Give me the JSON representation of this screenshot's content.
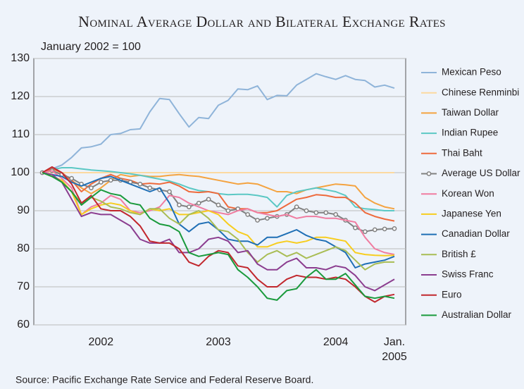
{
  "chart_data": {
    "type": "line",
    "title": "Nominal Average Dollar and Bilateral Exchange Rates",
    "subtitle": "January 2002 = 100",
    "source": "Source: Pacific Exchange Rate Service and Federal Reserve Board.",
    "categories": [
      null,
      null,
      null,
      null,
      null,
      null,
      "2002",
      null,
      null,
      null,
      null,
      null,
      null,
      null,
      null,
      null,
      null,
      null,
      "2003",
      null,
      null,
      null,
      null,
      null,
      null,
      null,
      null,
      null,
      null,
      null,
      "2004",
      null,
      null,
      null,
      null,
      null,
      "Jan. 2005"
    ],
    "ylim": [
      60,
      130
    ],
    "yticks": [
      60,
      70,
      80,
      90,
      100,
      110,
      120,
      130
    ],
    "grid": true,
    "legend": "right",
    "series": [
      {
        "name": "Mexican Peso",
        "color": "#8fb4d9",
        "values": [
          100,
          101,
          102,
          104,
          106.5,
          106.8,
          107.5,
          110,
          110.3,
          111.3,
          111.5,
          116,
          119.5,
          119.2,
          115.5,
          112,
          114.5,
          114.2,
          117.7,
          119,
          122,
          121.8,
          122.8,
          119.2,
          120.3,
          120.2,
          123,
          124.5,
          126,
          125.2,
          124.5,
          125.5,
          124.5,
          124.2,
          122.5,
          123,
          122.2
        ]
      },
      {
        "name": "Chinese Renminbi",
        "color": "#fcd9a0",
        "values": [
          100,
          100,
          100,
          100,
          100,
          100,
          100,
          100,
          100,
          100,
          100,
          100,
          100,
          100,
          100,
          100,
          100,
          100,
          100,
          100,
          100,
          100,
          100,
          100,
          100,
          100,
          100,
          100,
          100,
          100,
          100,
          100,
          100,
          100,
          100,
          100,
          100
        ]
      },
      {
        "name": "Taiwan Dollar",
        "color": "#f4a340",
        "values": [
          100,
          100.5,
          99.5,
          98,
          96,
          94.5,
          96,
          98,
          99.5,
          99,
          99.3,
          99,
          99,
          99.3,
          99.5,
          99.2,
          99,
          98.5,
          98,
          97.5,
          97,
          97.3,
          97,
          96,
          95,
          95,
          94.5,
          95.5,
          96,
          96.5,
          97,
          96.8,
          96.5,
          93.5,
          92,
          91,
          90.5
        ]
      },
      {
        "name": "Indian Rupee",
        "color": "#5bc8c4",
        "values": [
          100,
          100.8,
          101.3,
          101.3,
          101,
          100.7,
          100.5,
          100.3,
          100,
          99.7,
          99.3,
          98.8,
          98.3,
          97.8,
          97,
          96,
          95.3,
          95,
          94.5,
          94.2,
          94.3,
          94.3,
          94,
          93.5,
          91,
          94,
          95,
          95.5,
          96,
          95.5,
          95,
          94,
          91,
          90.5,
          90.3,
          90,
          90
        ]
      },
      {
        "name": "Thai Baht",
        "color": "#ee6a3c",
        "values": [
          100,
          101,
          100,
          98,
          95,
          97,
          98.5,
          99.5,
          98.5,
          98,
          97,
          97.2,
          97,
          97.5,
          96.5,
          95,
          94.8,
          95,
          94.5,
          91,
          90.5,
          90.5,
          89.5,
          89.5,
          90,
          91.5,
          93,
          93.5,
          94.2,
          94,
          93.5,
          93.5,
          92,
          89.5,
          88.5,
          87.8,
          87.3
        ]
      },
      {
        "name": "Average US Dollar",
        "color": "#808080",
        "marker": "circle",
        "values": [
          100,
          100.5,
          99.5,
          98.5,
          97,
          96,
          97.5,
          98,
          98,
          97.5,
          97,
          96,
          95.5,
          95,
          91.5,
          91,
          92,
          93,
          91.5,
          90,
          90.5,
          89,
          87.5,
          88,
          88.5,
          89,
          91,
          90,
          89.5,
          89.5,
          89,
          87.5,
          85.5,
          84.5,
          85,
          85.2,
          85.3
        ]
      },
      {
        "name": "Korean Won",
        "color": "#f07ca0",
        "values": [
          100,
          100.5,
          98.5,
          96,
          89,
          91,
          92,
          94,
          93,
          90,
          89.5,
          90,
          91,
          94,
          93.5,
          92,
          91,
          90,
          89.5,
          89,
          90,
          90.5,
          89.5,
          89,
          88.5,
          89,
          88,
          88.5,
          88.5,
          88,
          88,
          87.5,
          87,
          83,
          80,
          79,
          78.5
        ]
      },
      {
        "name": "Japanese Yen",
        "color": "#f7cd1f",
        "values": [
          100,
          99,
          98,
          95,
          89,
          90.5,
          91.5,
          92,
          91.5,
          90,
          89,
          90.5,
          90,
          90.5,
          89,
          89,
          89.5,
          90,
          89,
          86.5,
          84.5,
          83.5,
          80.5,
          80.5,
          81.5,
          82,
          81.5,
          82,
          83,
          83,
          82.5,
          82,
          79,
          78.5,
          78.3,
          78.2,
          78.3
        ]
      },
      {
        "name": "Canadian Dollar",
        "color": "#1f6fb5",
        "values": [
          100,
          99.5,
          99,
          97.5,
          96.5,
          97.5,
          98.5,
          99,
          98,
          97,
          96,
          95,
          96,
          92,
          86.5,
          84.5,
          86.5,
          87,
          85,
          82.5,
          82,
          82,
          81,
          83,
          83,
          84,
          85,
          83.5,
          82.5,
          82,
          80.5,
          79,
          75,
          76,
          76.5,
          77,
          78
        ]
      },
      {
        "name": "British £",
        "color": "#a9bd54",
        "values": [
          100,
          99,
          97.5,
          95,
          92,
          93.5,
          92.5,
          91,
          90.5,
          89.5,
          89,
          90.5,
          90.5,
          88,
          86.5,
          89,
          90,
          88,
          85,
          84.5,
          82.5,
          79,
          76.5,
          78.5,
          79.5,
          78,
          79,
          77.5,
          78.5,
          79.5,
          80.5,
          79.5,
          77,
          74.5,
          76,
          76.5,
          76.5
        ]
      },
      {
        "name": "Swiss Franc",
        "color": "#8b3d8f",
        "values": [
          100,
          99.5,
          97.5,
          93,
          88.5,
          89.5,
          89,
          89,
          87.5,
          86,
          82.5,
          81.5,
          81.5,
          82.5,
          79,
          79,
          80,
          82.5,
          83,
          82,
          79,
          79.5,
          76,
          74.5,
          74.5,
          76.5,
          77.5,
          75,
          75,
          74.5,
          75.5,
          75,
          73,
          70,
          69,
          70.5,
          72
        ]
      },
      {
        "name": "Euro",
        "color": "#c1272d",
        "values": [
          100,
          101.5,
          100,
          97,
          92,
          94,
          90.5,
          90,
          90,
          88.5,
          86,
          82,
          81.5,
          81.5,
          80,
          76.5,
          75.5,
          78,
          79.5,
          79,
          75.5,
          75,
          72,
          70,
          70,
          72,
          73,
          72.5,
          72.5,
          72,
          72.5,
          72,
          70,
          67.5,
          66,
          67.5,
          68
        ]
      },
      {
        "name": "Australian Dollar",
        "color": "#1a9a3c",
        "values": [
          100,
          99,
          97.5,
          95,
          91.5,
          93.5,
          95.5,
          94.5,
          94,
          92,
          91.5,
          88,
          86.5,
          86,
          84.5,
          79,
          78,
          78.5,
          79,
          78.5,
          74.5,
          72.5,
          70,
          67,
          66.5,
          69,
          69.5,
          72.5,
          74.5,
          72,
          72,
          73.5,
          70.5,
          67.5,
          67,
          67.5,
          67
        ]
      }
    ]
  }
}
